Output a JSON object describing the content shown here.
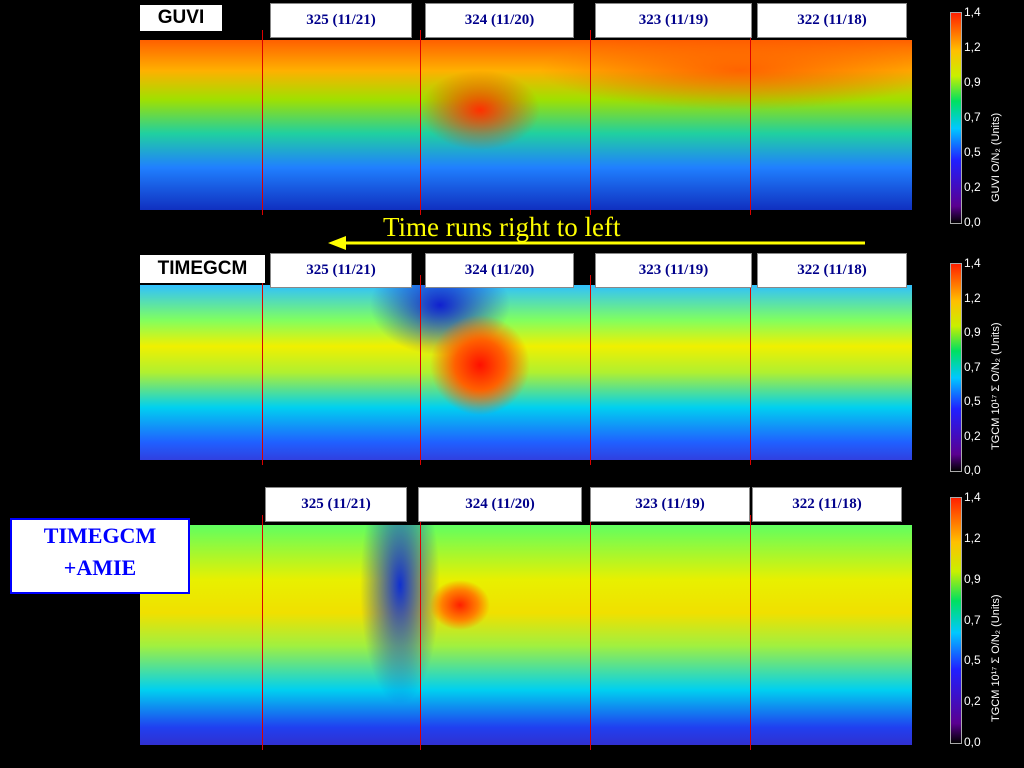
{
  "annotation": "Time runs right to left",
  "side_label": [
    "TIMEGCM",
    "+AMIE"
  ],
  "panels": [
    {
      "label": "GUVI",
      "days": [
        "325 (11/21)",
        "324 (11/20)",
        "323 (11/19)",
        "322 (11/18)"
      ],
      "colorbar": {
        "title": "GUVI O/N₂ (Units)",
        "ticks": [
          "1,4",
          "1,2",
          "0,9",
          "0,7",
          "0,5",
          "0,2",
          "0,0"
        ]
      }
    },
    {
      "label": "TIMEGCM",
      "days": [
        "325 (11/21)",
        "324 (11/20)",
        "323 (11/19)",
        "322 (11/18)"
      ],
      "colorbar": {
        "title": "TGCM 10¹⁷ Σ O/N₂ (Units)",
        "ticks": [
          "1,4",
          "1,2",
          "0,9",
          "0,7",
          "0,5",
          "0,2",
          "0,0"
        ]
      }
    },
    {
      "days": [
        "325 (11/21)",
        "324 (11/20)",
        "323 (11/19)",
        "322 (11/18)"
      ],
      "colorbar": {
        "title": "TGCM 10¹⁷ Σ O/N₂ (Units)",
        "ticks": [
          "1,4",
          "1,2",
          "0,9",
          "0,7",
          "0,5",
          "0,2",
          "0,0"
        ]
      }
    }
  ]
}
